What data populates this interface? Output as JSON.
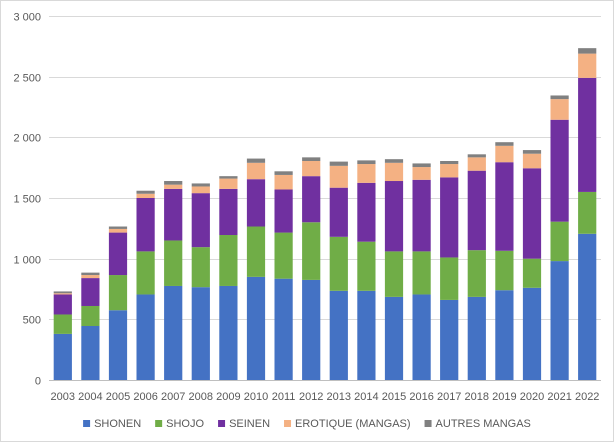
{
  "chart_data": {
    "type": "bar",
    "stacked": true,
    "categories": [
      "2003",
      "2004",
      "2005",
      "2006",
      "2007",
      "2008",
      "2009",
      "2010",
      "2011",
      "2012",
      "2013",
      "2014",
      "2015",
      "2016",
      "2017",
      "2018",
      "2019",
      "2020",
      "2021",
      "2022"
    ],
    "series": [
      {
        "name": "SHONEN",
        "color": "#4472C4",
        "values": [
          380,
          445,
          575,
          705,
          775,
          765,
          775,
          850,
          835,
          825,
          735,
          735,
          685,
          705,
          660,
          685,
          740,
          760,
          980,
          1205
        ]
      },
      {
        "name": "SHOJO",
        "color": "#70AD47",
        "values": [
          160,
          165,
          290,
          355,
          375,
          330,
          420,
          415,
          380,
          475,
          445,
          405,
          375,
          355,
          350,
          385,
          325,
          240,
          325,
          345
        ]
      },
      {
        "name": "SEINEN",
        "color": "#7030A0",
        "values": [
          165,
          230,
          350,
          440,
          425,
          445,
          380,
          390,
          355,
          380,
          405,
          485,
          580,
          590,
          660,
          655,
          730,
          745,
          840,
          940
        ]
      },
      {
        "name": "EROTIQUE (MANGAS)",
        "color": "#F4B183",
        "values": [
          10,
          25,
          30,
          35,
          35,
          55,
          85,
          135,
          120,
          125,
          180,
          155,
          150,
          105,
          110,
          110,
          135,
          120,
          170,
          200
        ]
      },
      {
        "name": "AUTRES MANGAS",
        "color": "#808080",
        "values": [
          15,
          20,
          20,
          25,
          30,
          25,
          20,
          35,
          30,
          30,
          35,
          30,
          30,
          30,
          25,
          25,
          30,
          30,
          30,
          45
        ]
      }
    ],
    "yticks": [
      "0",
      "500",
      "1 000",
      "1 500",
      "2 000",
      "2 500",
      "3 000"
    ],
    "ytick_values": [
      0,
      500,
      1000,
      1500,
      2000,
      2500,
      3000
    ],
    "ylim": [
      0,
      3000
    ],
    "title": "",
    "xlabel": "",
    "ylabel": "",
    "grid": true,
    "legend_position": "bottom"
  }
}
